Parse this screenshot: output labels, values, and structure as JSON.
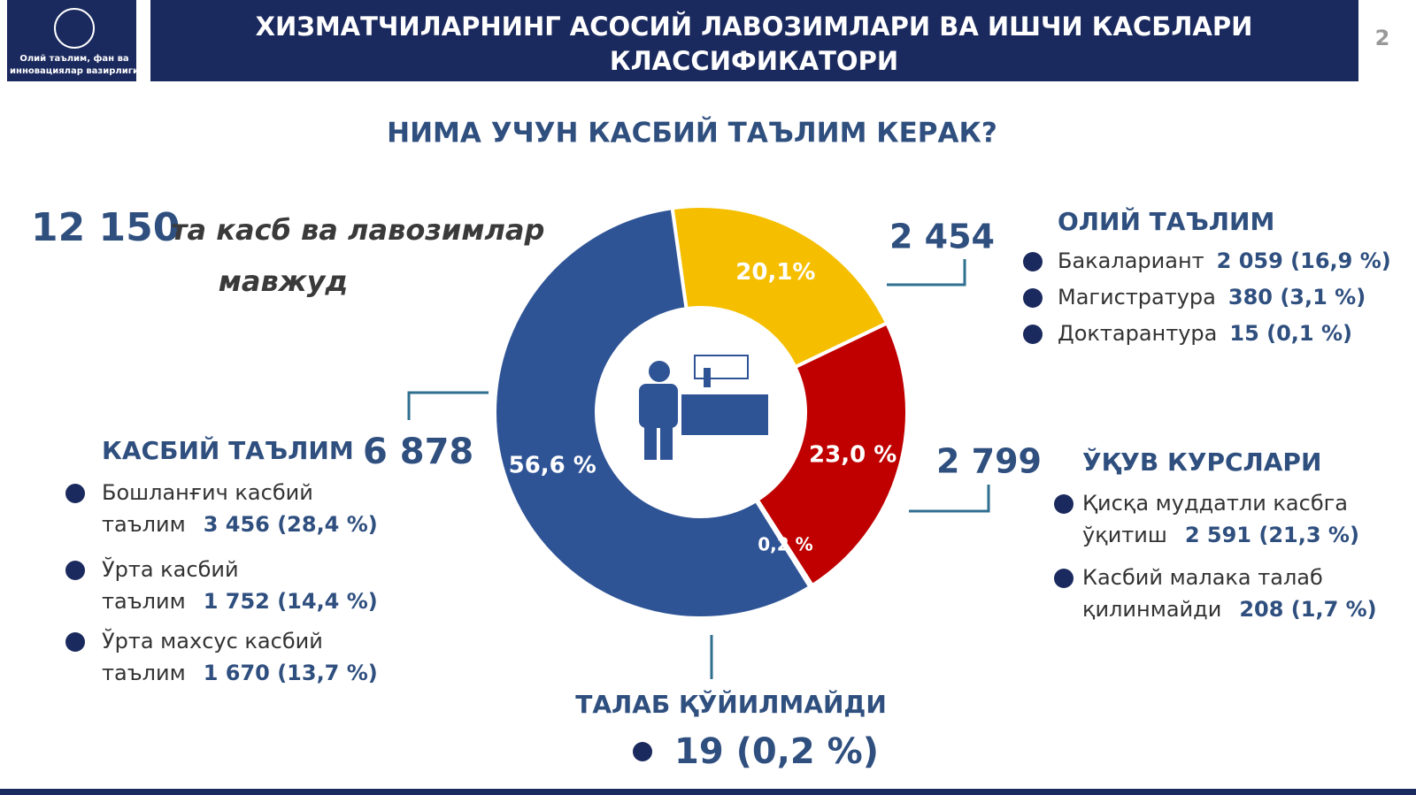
{
  "header": {
    "logo_text": [
      "Олий таълим, фан ва",
      "инновациялар вазирлиги"
    ],
    "title": [
      "ХИЗМАТЧИЛАРНИНГ АСОСИЙ ЛАВОЗИМЛАРИ ВА ИШЧИ КАСБЛАРИ",
      "КЛАССИФИКАТОРИ"
    ],
    "page": "2"
  },
  "subtitle": "НИМА УЧУН КАСБИЙ ТАЪЛИМ КЕРАК?",
  "total": {
    "number": "12 150",
    "text": "та касб ва лавозимлар",
    "text2": "мавжуд"
  },
  "higher": {
    "title": "ОЛИЙ ТАЪЛИМ",
    "total": "2 454",
    "items": [
      {
        "text": "Бакалариант",
        "value": "2 059 (16,9 %)"
      },
      {
        "text": "Магистратура",
        "value": "380 (3,1 %)"
      },
      {
        "text": "Доктарантура",
        "value": "15 (0,1 %)"
      }
    ]
  },
  "vocational": {
    "title": "КАСБИЙ ТАЪЛИМ",
    "total": "6 878",
    "items": [
      {
        "line1": "Бошланғич касбий",
        "line2": "таълим",
        "value": "3 456 (28,4 %)"
      },
      {
        "line1": "Ўрта касбий",
        "line2": "таълим",
        "value": "1 752 (14,4 %)"
      },
      {
        "line1": "Ўрта махсус касбий",
        "line2": "таълим",
        "value": "1 670 (13,7 %)"
      }
    ]
  },
  "courses": {
    "title": "ЎҚУВ КУРСЛАРИ",
    "total": "2 799",
    "items": [
      {
        "line1": "Қисқа муддатли касбга",
        "line2": "ўқитиш",
        "value": "2 591 (21,3 %)"
      },
      {
        "line1": "Касбий малака талаб",
        "line2": "қилинмайди",
        "value": "208 (1,7 %)"
      }
    ]
  },
  "none": {
    "title": "ТАЛАБ ҚЎЙИЛМАЙДИ",
    "value": "19 (0,2 %)"
  },
  "chart_data": {
    "type": "pie",
    "donut": true,
    "values": [
      20.1,
      23.0,
      0.2,
      56.6
    ],
    "value_labels": [
      "20,1%",
      "23,0 %",
      "0,2 %",
      "56,6 %"
    ],
    "colors": [
      "#f5bf00",
      "#c00000",
      "#5b8a3a",
      "#2f5496"
    ]
  }
}
